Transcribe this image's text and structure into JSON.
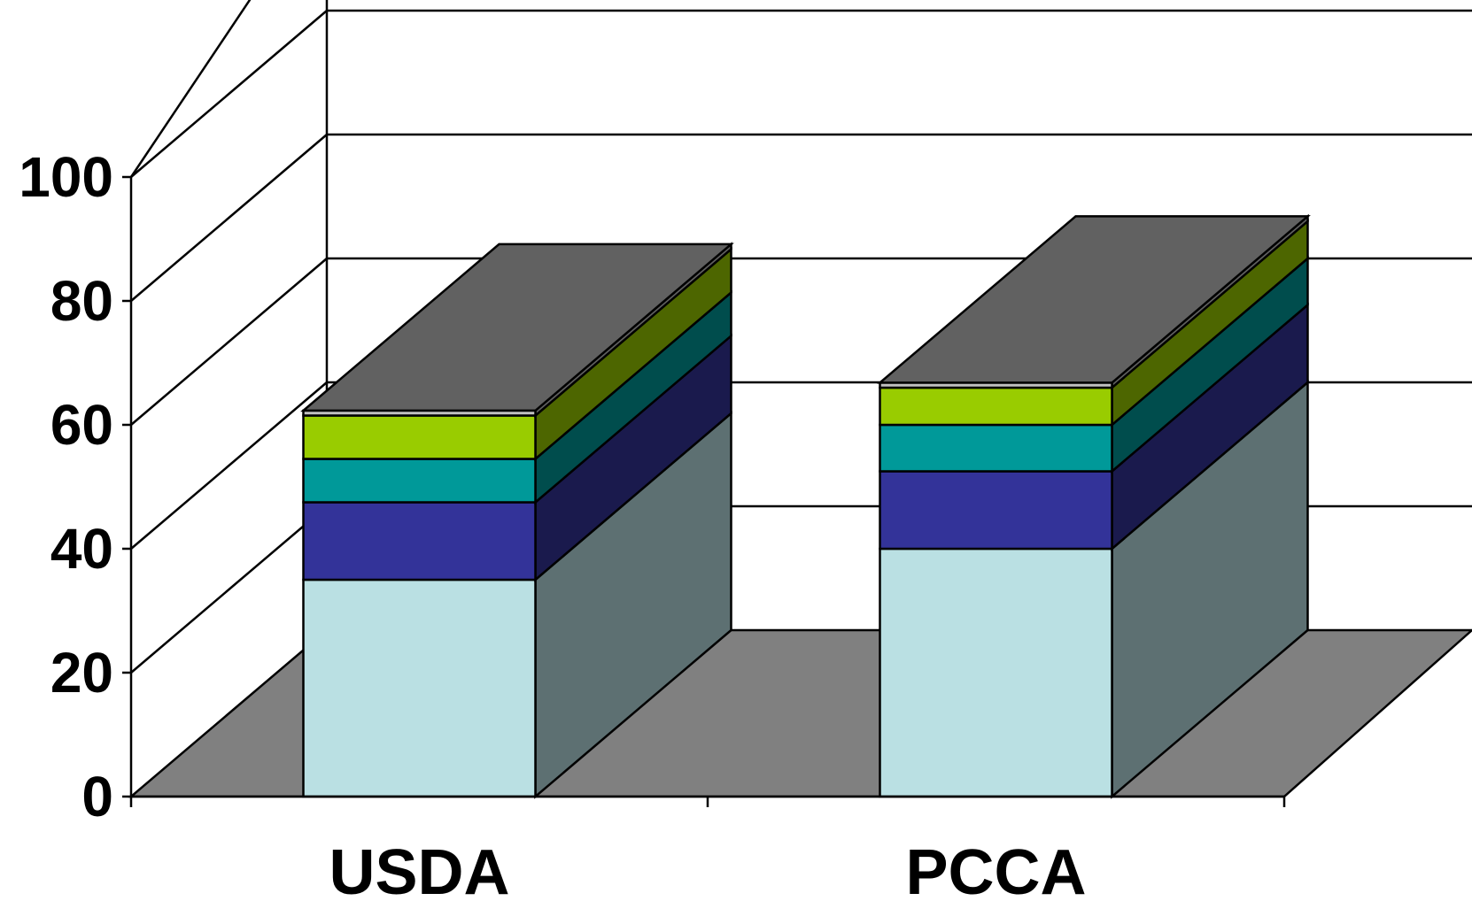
{
  "chart_data": {
    "type": "bar",
    "stacked": true,
    "three_d": true,
    "title": "",
    "xlabel": "",
    "ylabel": "",
    "categories": [
      "USDA",
      "PCCA"
    ],
    "ylim": [
      0,
      100
    ],
    "yticks": [
      0,
      20,
      40,
      60,
      80,
      100
    ],
    "grid": true,
    "legend": "none",
    "series": [
      {
        "values": [
          35,
          40
        ],
        "color": "#BAE0E3"
      },
      {
        "values": [
          12.5,
          12.5
        ],
        "color": "#333399"
      },
      {
        "values": [
          7,
          7.5
        ],
        "color": "#009999"
      },
      {
        "values": [
          7,
          6
        ],
        "color": "#99CC00"
      },
      {
        "values": [
          0.8,
          0.8
        ],
        "color": "#C0C0C0"
      }
    ],
    "colors": {
      "floor": "#808080",
      "top": "#616161",
      "gridline": "#000000"
    }
  }
}
